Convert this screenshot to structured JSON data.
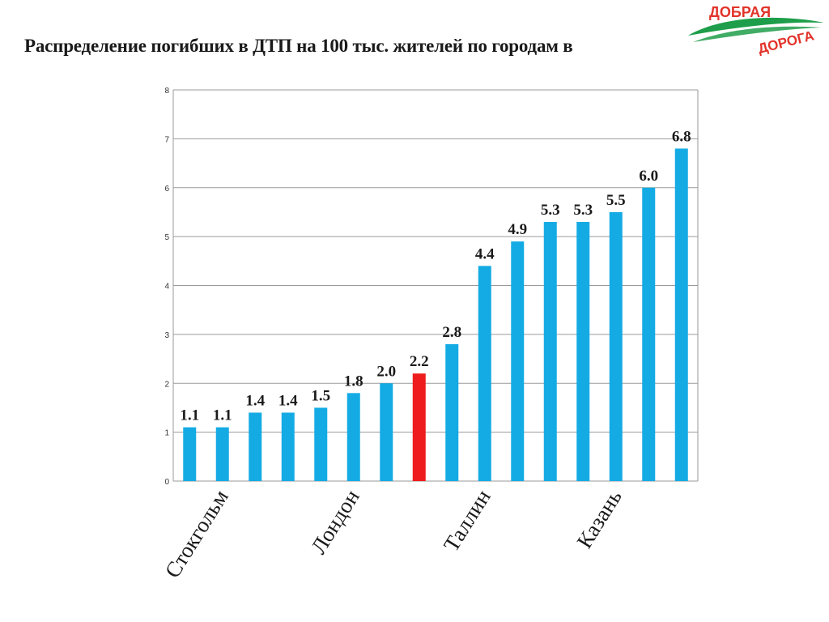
{
  "title": "Распределение погибших в ДТП на 100 тыс. жителей по городам в",
  "logo": {
    "line1": "ДОБРАЯ",
    "line2": "ДОРОГА"
  },
  "colors": {
    "bar": "#14ABE4",
    "highlight": "#EE1C1C",
    "logo_green": "#1E9E4A",
    "logo_red": "#E2332A"
  },
  "chart_data": {
    "type": "bar",
    "title": "Распределение погибших в ДТП на 100 тыс. жителей по городам в",
    "values": [
      1.1,
      1.1,
      1.4,
      1.4,
      1.5,
      1.8,
      2.0,
      2.2,
      2.8,
      4.4,
      4.9,
      5.3,
      5.3,
      5.5,
      6.0,
      6.8
    ],
    "value_labels": [
      "1.1",
      "1.1",
      "1.4",
      "1.4",
      "1.5",
      "1.8",
      "2.0",
      "2.2",
      "2.8",
      "4.4",
      "4.9",
      "5.3",
      "5.3",
      "5.5",
      "6.0",
      "6.8"
    ],
    "highlight_index": 7,
    "category_labels": [
      {
        "index": 1,
        "text": "Стокгольм"
      },
      {
        "index": 5,
        "text": "Лондон"
      },
      {
        "index": 9,
        "text": "Таллин"
      },
      {
        "index": 13,
        "text": "Казань"
      }
    ],
    "ylim": [
      0,
      8
    ],
    "yticks": [
      0,
      1,
      2,
      3,
      4,
      5,
      6,
      7,
      8
    ],
    "grid": true,
    "legend": "none"
  }
}
